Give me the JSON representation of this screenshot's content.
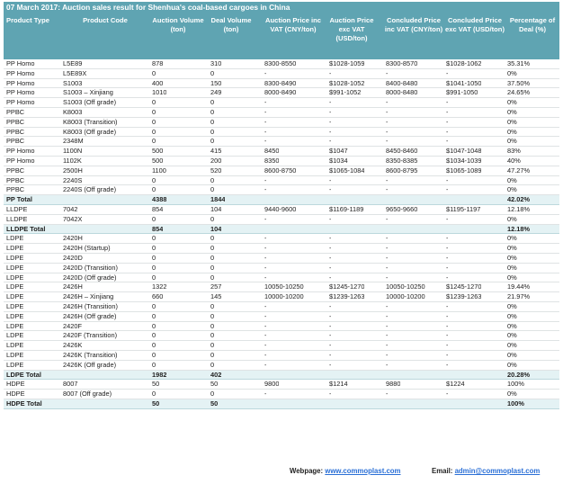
{
  "title": "07 March 2017: Auction sales result for Shenhua's coal-based cargoes in China",
  "headers": {
    "product_type": "Product Type",
    "product_code": "Product Code",
    "auction_volume": "Auction Volume (ton)",
    "deal_volume": "Deal Volume (ton)",
    "auction_price_inc": "Auction Price inc VAT (CNY/ton)",
    "auction_price_exc": "Auction Price exc VAT (USD/ton)",
    "concluded_price_inc": "Concluded Price inc VAT (CNY/ton)",
    "concluded_price_exc": "Concluded Price exc VAT (USD/ton)",
    "percentage_deal": "Percentage of Deal (%)"
  },
  "rows": [
    {
      "type": "PP Homo",
      "code": "L5E89",
      "auction": "878",
      "deal": "310",
      "api": "8300-8550",
      "ape": "$1028-1059",
      "cpi": "8300-8570",
      "cpe": "$1028-1062",
      "pct": "35.31%"
    },
    {
      "type": "PP Homo",
      "code": "L5E89X",
      "auction": "0",
      "deal": "0",
      "api": "-",
      "ape": "-",
      "cpi": "-",
      "cpe": "-",
      "pct": "0%"
    },
    {
      "type": "PP Homo",
      "code": "S1003",
      "auction": "400",
      "deal": "150",
      "api": "8300-8490",
      "ape": "$1028-1052",
      "cpi": "8400-8480",
      "cpe": "$1041-1050",
      "pct": "37.50%"
    },
    {
      "type": "PP Homo",
      "code": "S1003 – Xinjiang",
      "auction": "1010",
      "deal": "249",
      "api": "8000-8490",
      "ape": "$991-1052",
      "cpi": "8000-8480",
      "cpe": "$991-1050",
      "pct": "24.65%"
    },
    {
      "type": "PP Homo",
      "code": "S1003 (Off grade)",
      "auction": "0",
      "deal": "0",
      "api": "-",
      "ape": "-",
      "cpi": "-",
      "cpe": "-",
      "pct": "0%"
    },
    {
      "type": "PPBC",
      "code": "K8003",
      "auction": "0",
      "deal": "0",
      "api": "-",
      "ape": "-",
      "cpi": "-",
      "cpe": "-",
      "pct": "0%"
    },
    {
      "type": "PPBC",
      "code": "K8003 (Transition)",
      "auction": "0",
      "deal": "0",
      "api": "-",
      "ape": "-",
      "cpi": "-",
      "cpe": "-",
      "pct": "0%"
    },
    {
      "type": "PPBC",
      "code": "K8003 (Off grade)",
      "auction": "0",
      "deal": "0",
      "api": "-",
      "ape": "-",
      "cpi": "-",
      "cpe": "-",
      "pct": "0%"
    },
    {
      "type": "PPBC",
      "code": "2348M",
      "auction": "0",
      "deal": "0",
      "api": "-",
      "ape": "-",
      "cpi": "-",
      "cpe": "-",
      "pct": "0%"
    },
    {
      "type": "PP Homo",
      "code": "1100N",
      "auction": "500",
      "deal": "415",
      "api": "8450",
      "ape": "$1047",
      "cpi": "8450-8460",
      "cpe": "$1047-1048",
      "pct": "83%"
    },
    {
      "type": "PP Homo",
      "code": "1102K",
      "auction": "500",
      "deal": "200",
      "api": "8350",
      "ape": "$1034",
      "cpi": "8350-8385",
      "cpe": "$1034-1039",
      "pct": "40%"
    },
    {
      "type": "PPBC",
      "code": "2500H",
      "auction": "1100",
      "deal": "520",
      "api": "8600-8750",
      "ape": "$1065-1084",
      "cpi": "8600-8795",
      "cpe": "$1065-1089",
      "pct": "47.27%"
    },
    {
      "type": "PPBC",
      "code": "2240S",
      "auction": "0",
      "deal": "0",
      "api": "-",
      "ape": "-",
      "cpi": "-",
      "cpe": "-",
      "pct": "0%"
    },
    {
      "type": "PPBC",
      "code": "2240S (Off grade)",
      "auction": "0",
      "deal": "0",
      "api": "-",
      "ape": "-",
      "cpi": "-",
      "cpe": "-",
      "pct": "0%"
    },
    {
      "total": true,
      "type": "PP Total",
      "code": "",
      "auction": "4388",
      "deal": "1844",
      "api": "",
      "ape": "",
      "cpi": "",
      "cpe": "",
      "pct": "42.02%"
    },
    {
      "type": "LLDPE",
      "code": "7042",
      "auction": "854",
      "deal": "104",
      "api": "9440-9600",
      "ape": "$1169-1189",
      "cpi": "9650-9660",
      "cpe": "$1195-1197",
      "pct": "12.18%"
    },
    {
      "type": "LLDPE",
      "code": "7042X",
      "auction": "0",
      "deal": "0",
      "api": "-",
      "ape": "-",
      "cpi": "-",
      "cpe": "-",
      "pct": "0%"
    },
    {
      "total": true,
      "type": "LLDPE Total",
      "code": "",
      "auction": "854",
      "deal": "104",
      "api": "",
      "ape": "",
      "cpi": "",
      "cpe": "",
      "pct": "12.18%"
    },
    {
      "type": "LDPE",
      "code": "2420H",
      "auction": "0",
      "deal": "0",
      "api": "-",
      "ape": "-",
      "cpi": "-",
      "cpe": "-",
      "pct": "0%"
    },
    {
      "type": "LDPE",
      "code": "2420H (Startup)",
      "auction": "0",
      "deal": "0",
      "api": "-",
      "ape": "-",
      "cpi": "-",
      "cpe": "-",
      "pct": "0%"
    },
    {
      "type": "LDPE",
      "code": "2420D",
      "auction": "0",
      "deal": "0",
      "api": "-",
      "ape": "-",
      "cpi": "-",
      "cpe": "-",
      "pct": "0%"
    },
    {
      "type": "LDPE",
      "code": "2420D (Transition)",
      "auction": "0",
      "deal": "0",
      "api": "-",
      "ape": "-",
      "cpi": "-",
      "cpe": "-",
      "pct": "0%"
    },
    {
      "type": "LDPE",
      "code": "2420D (Off grade)",
      "auction": "0",
      "deal": "0",
      "api": "-",
      "ape": "-",
      "cpi": "-",
      "cpe": "-",
      "pct": "0%"
    },
    {
      "type": "LDPE",
      "code": "2426H",
      "auction": "1322",
      "deal": "257",
      "api": "10050-10250",
      "ape": "$1245-1270",
      "cpi": "10050-10250",
      "cpe": "$1245-1270",
      "pct": "19.44%"
    },
    {
      "type": "LDPE",
      "code": "2426H – Xinjiang",
      "auction": "660",
      "deal": "145",
      "api": "10000-10200",
      "ape": "$1239-1263",
      "cpi": "10000-10200",
      "cpe": "$1239-1263",
      "pct": "21.97%"
    },
    {
      "type": "LDPE",
      "code": "2426H (Transition)",
      "auction": "0",
      "deal": "0",
      "api": "-",
      "ape": "-",
      "cpi": "-",
      "cpe": "-",
      "pct": "0%"
    },
    {
      "type": "LDPE",
      "code": "2426H (Off grade)",
      "auction": "0",
      "deal": "0",
      "api": "-",
      "ape": "-",
      "cpi": "-",
      "cpe": "-",
      "pct": "0%"
    },
    {
      "type": "LDPE",
      "code": "2420F",
      "auction": "0",
      "deal": "0",
      "api": "-",
      "ape": "-",
      "cpi": "-",
      "cpe": "-",
      "pct": "0%"
    },
    {
      "type": "LDPE",
      "code": "2420F (Transition)",
      "auction": "0",
      "deal": "0",
      "api": "-",
      "ape": "-",
      "cpi": "-",
      "cpe": "-",
      "pct": "0%"
    },
    {
      "type": "LDPE",
      "code": "2426K",
      "auction": "0",
      "deal": "0",
      "api": "-",
      "ape": "-",
      "cpi": "-",
      "cpe": "-",
      "pct": "0%"
    },
    {
      "type": "LDPE",
      "code": "2426K (Transition)",
      "auction": "0",
      "deal": "0",
      "api": "-",
      "ape": "-",
      "cpi": "-",
      "cpe": "-",
      "pct": "0%"
    },
    {
      "type": "LDPE",
      "code": "2426K (Off grade)",
      "auction": "0",
      "deal": "0",
      "api": "-",
      "ape": "-",
      "cpi": "-",
      "cpe": "-",
      "pct": "0%"
    },
    {
      "total": true,
      "type": "LDPE Total",
      "code": "",
      "auction": "1982",
      "deal": "402",
      "api": "",
      "ape": "",
      "cpi": "",
      "cpe": "",
      "pct": "20.28%"
    },
    {
      "type": "HDPE",
      "code": "8007",
      "auction": "50",
      "deal": "50",
      "api": "9800",
      "ape": "$1214",
      "cpi": "9880",
      "cpe": "$1224",
      "pct": "100%"
    },
    {
      "type": "HDPE",
      "code": "8007 (Off grade)",
      "auction": "0",
      "deal": "0",
      "api": "-",
      "ape": "-",
      "cpi": "-",
      "cpe": "-",
      "pct": "0%"
    },
    {
      "total": true,
      "type": "HDPE Total",
      "code": "",
      "auction": "50",
      "deal": "50",
      "api": "",
      "ape": "",
      "cpi": "",
      "cpe": "",
      "pct": "100%"
    }
  ],
  "footer": {
    "webpage_label": "Webpage:",
    "webpage_link": "www.commoplast.com",
    "email_label": "Email:",
    "email_link": "admin@commoplast.com"
  },
  "colors": {
    "header_bg": "#5fa4b2",
    "total_bg": "#e4f2f4",
    "link": "#2a6fd6"
  }
}
